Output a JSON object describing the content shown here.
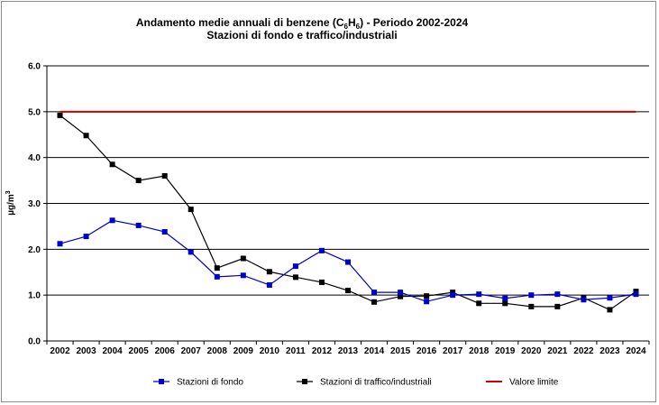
{
  "chart_data": {
    "type": "line",
    "title": {
      "line1_prefix": "Andamento medie annuali di benzene (C",
      "sub1": "6",
      "mid": "H",
      "sub2": "6",
      "line1_suffix": ") - Periodo 2002-2024",
      "line2": "Stazioni di fondo e traffico/industriali"
    },
    "ylabel": {
      "base": "µg/m",
      "sup": "3"
    },
    "xlabel": "",
    "ylim": [
      0,
      6
    ],
    "yticks": [
      "0.0",
      "1.0",
      "2.0",
      "3.0",
      "4.0",
      "5.0",
      "6.0"
    ],
    "grid": true,
    "legend_position": "bottom",
    "x": [
      "2002",
      "2003",
      "2004",
      "2005",
      "2006",
      "2007",
      "2008",
      "2009",
      "2010",
      "2011",
      "2012",
      "2013",
      "2014",
      "2015",
      "2016",
      "2017",
      "2018",
      "2019",
      "2020",
      "2021",
      "2022",
      "2023",
      "2024"
    ],
    "series": [
      {
        "name": "Stazioni di fondo",
        "color": "#0000cc",
        "marker": "square",
        "values": [
          2.12,
          2.28,
          2.63,
          2.52,
          2.38,
          1.94,
          1.4,
          1.43,
          1.22,
          1.63,
          1.97,
          1.72,
          1.06,
          1.06,
          0.86,
          1.0,
          1.02,
          0.93,
          1.0,
          1.02,
          0.9,
          0.94,
          1.02
        ]
      },
      {
        "name": "Stazioni di traffico/industriali",
        "color": "#000000",
        "marker": "square",
        "values": [
          4.92,
          4.48,
          3.85,
          3.5,
          3.6,
          2.87,
          1.59,
          1.8,
          1.51,
          1.39,
          1.28,
          1.1,
          0.85,
          0.97,
          0.98,
          1.06,
          0.82,
          0.82,
          0.75,
          0.75,
          0.94,
          0.68,
          1.08
        ]
      },
      {
        "name": "Valore limite",
        "color": "#cc0000",
        "marker": "none",
        "values": [
          5,
          5,
          5,
          5,
          5,
          5,
          5,
          5,
          5,
          5,
          5,
          5,
          5,
          5,
          5,
          5,
          5,
          5,
          5,
          5,
          5,
          5,
          5
        ]
      }
    ]
  }
}
